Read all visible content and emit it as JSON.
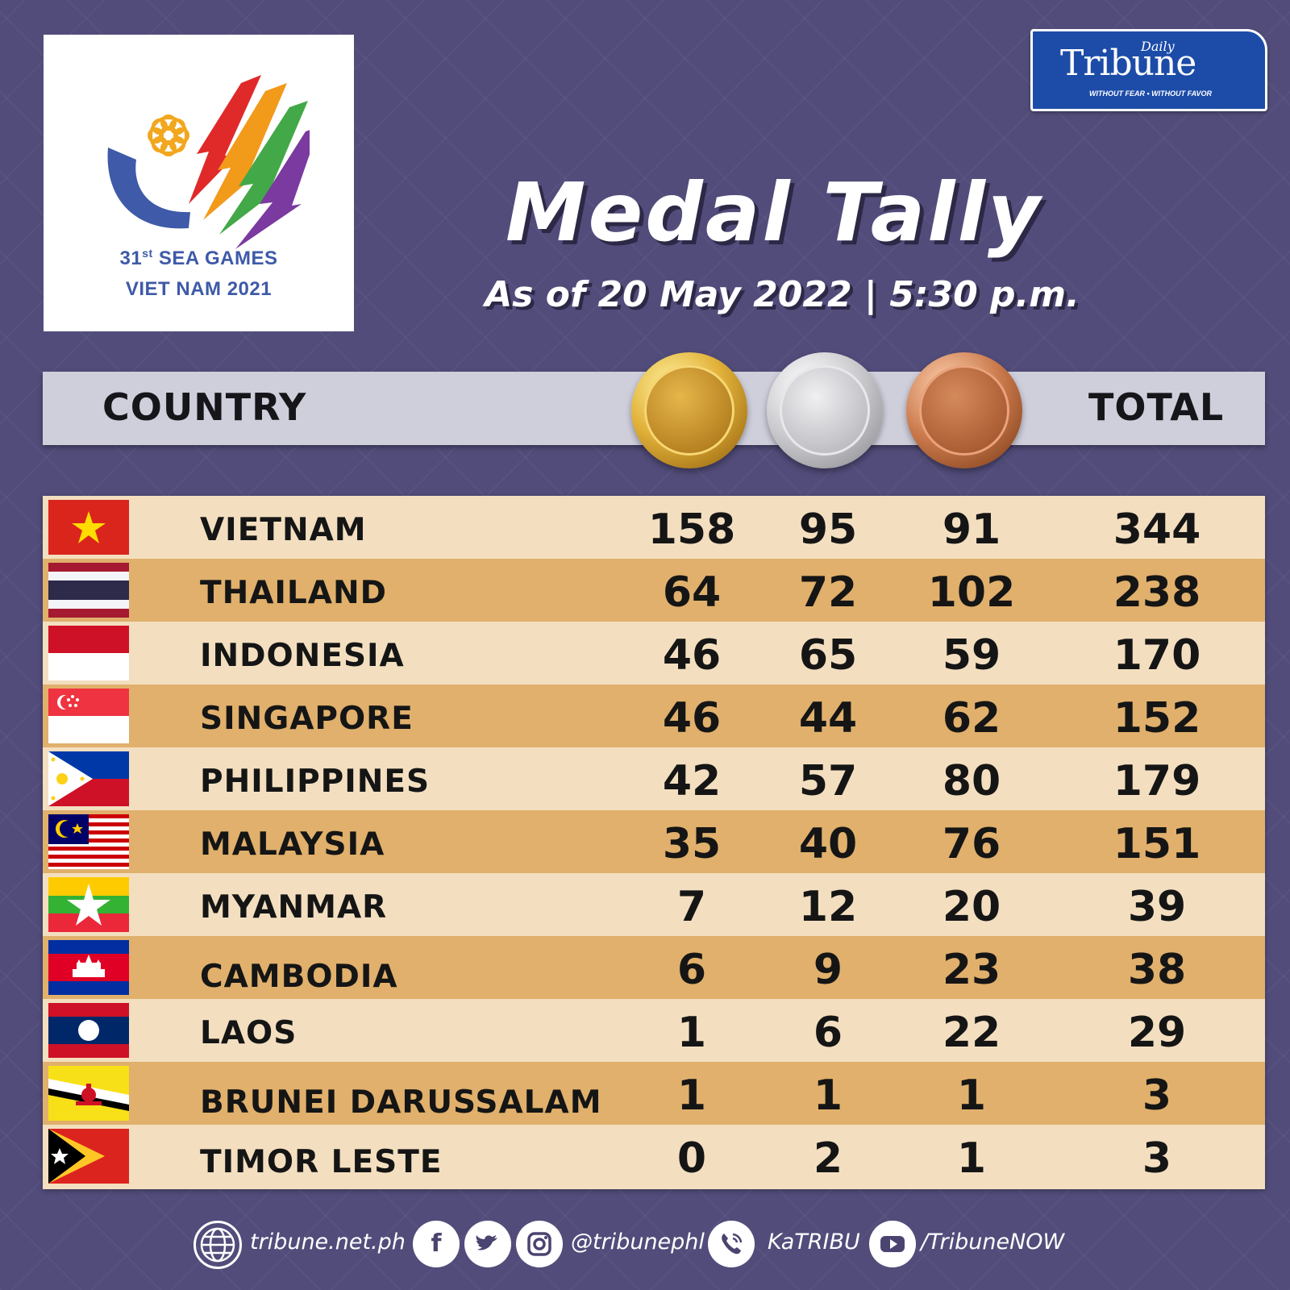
{
  "logo": {
    "line1_main": "31",
    "line1_sup": "st",
    "line1_rest": " SEA GAMES",
    "line2": "VIET NAM 2021"
  },
  "brand": {
    "daily": "Daily",
    "name": "Tribune",
    "tagline": "WITHOUT FEAR • WITHOUT FAVOR"
  },
  "title": "Medal Tally",
  "subtitle": "As of 20 May 2022 | 5:30 p.m.",
  "header": {
    "country": "COUNTRY",
    "total": "TOTAL",
    "medal_icons": [
      "gold-medal-icon",
      "silver-medal-icon",
      "bronze-medal-icon"
    ]
  },
  "rows": [
    {
      "country": "VIETNAM",
      "flag": "vietnam-flag-icon",
      "gold": "158",
      "silver": "95",
      "bronze": "91",
      "total": "344"
    },
    {
      "country": "THAILAND",
      "flag": "thailand-flag-icon",
      "gold": "64",
      "silver": "72",
      "bronze": "102",
      "total": "238"
    },
    {
      "country": "INDONESIA",
      "flag": "indonesia-flag-icon",
      "gold": "46",
      "silver": "65",
      "bronze": "59",
      "total": "170"
    },
    {
      "country": "SINGAPORE",
      "flag": "singapore-flag-icon",
      "gold": "46",
      "silver": "44",
      "bronze": "62",
      "total": "152"
    },
    {
      "country": "PHILIPPINES",
      "flag": "philippines-flag-icon",
      "gold": "42",
      "silver": "57",
      "bronze": "80",
      "total": "179"
    },
    {
      "country": "MALAYSIA",
      "flag": "malaysia-flag-icon",
      "gold": "35",
      "silver": "40",
      "bronze": "76",
      "total": "151"
    },
    {
      "country": "MYANMAR",
      "flag": "myanmar-flag-icon",
      "gold": "7",
      "silver": "12",
      "bronze": "20",
      "total": "39"
    },
    {
      "country": "CAMBODIA",
      "flag": "cambodia-flag-icon",
      "gold": "6",
      "silver": "9",
      "bronze": "23",
      "total": "38"
    },
    {
      "country": "LAOS",
      "flag": "laos-flag-icon",
      "gold": "1",
      "silver": "6",
      "bronze": "22",
      "total": "29"
    },
    {
      "country": "BRUNEI DARUSSALAM",
      "flag": "brunei-flag-icon",
      "gold": "1",
      "silver": "1",
      "bronze": "1",
      "total": "3"
    },
    {
      "country": "TIMOR LESTE",
      "flag": "timor-leste-flag-icon",
      "gold": "0",
      "silver": "2",
      "bronze": "1",
      "total": "3"
    }
  ],
  "footer": {
    "website": "tribune.net.ph",
    "social_handle": "@tribunephl",
    "viber": "KaTRIBU",
    "youtube": "/TribuneNOW"
  },
  "colors": {
    "background": "#514c7a",
    "row_light": "#f3dfc0",
    "row_dark": "#e0b06c",
    "header_bar": "#cfcfdc",
    "brand_blue": "#1c4ca8"
  }
}
